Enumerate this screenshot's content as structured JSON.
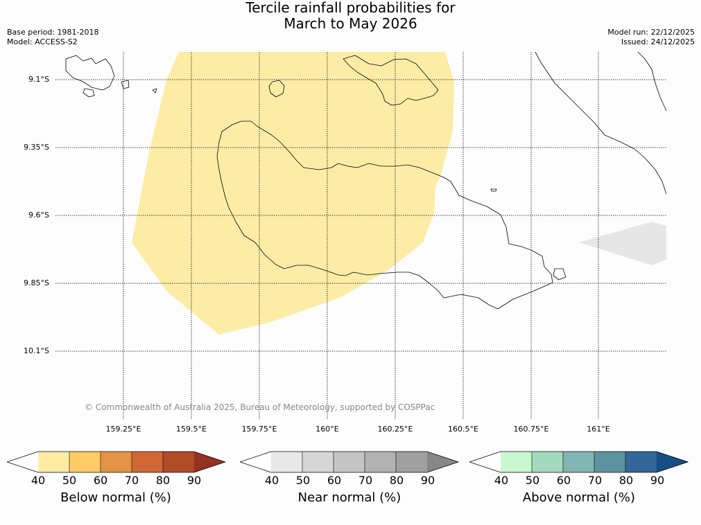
{
  "title": {
    "line1": "Tercile rainfall probabilities for",
    "line2": "March to May 2026"
  },
  "meta": {
    "base_period": "Base period: 1981-2018",
    "model": "Model: ACCESS-S2",
    "model_run": "Model run: 22/12/2025",
    "issued": "Issued: 24/12/2025"
  },
  "map": {
    "lat_labels": [
      "9.1°S",
      "9.35°S",
      "9.6°S",
      "9.85°S",
      "10.1°S"
    ],
    "lon_labels": [
      "159.25°E",
      "159.5°E",
      "159.75°E",
      "160°E",
      "160.25°E",
      "160.5°E",
      "160.75°E",
      "161°E"
    ],
    "regions": [
      {
        "category": "Below normal",
        "probability_bin": "40-50",
        "color": "#fdeca6"
      },
      {
        "category": "Near normal",
        "probability_bin": "40-50",
        "color": "#e6e6e6"
      }
    ],
    "copyright": "© Commonwealth of Australia 2025, Bureau of Meteorology, supported by COSPPac"
  },
  "colorbars": [
    {
      "label": "Below normal (%)",
      "ticks": [
        "40",
        "50",
        "60",
        "70",
        "80",
        "90"
      ],
      "colors": [
        "#ffffff",
        "#feeba4",
        "#fecb66",
        "#e39446",
        "#d06734",
        "#b14b27",
        "#963221"
      ]
    },
    {
      "label": "Near normal (%)",
      "ticks": [
        "40",
        "50",
        "60",
        "70",
        "80",
        "90"
      ],
      "colors": [
        "#ffffff",
        "#e8e8e8",
        "#d6d6d6",
        "#c4c4c4",
        "#b2b2b2",
        "#a0a0a0",
        "#878787"
      ]
    },
    {
      "label": "Above normal (%)",
      "ticks": [
        "40",
        "50",
        "60",
        "70",
        "80",
        "90"
      ],
      "colors": [
        "#ffffff",
        "#c8f8cf",
        "#a3d9bf",
        "#82b6b2",
        "#5d93a1",
        "#33679a",
        "#174e86"
      ]
    }
  ]
}
